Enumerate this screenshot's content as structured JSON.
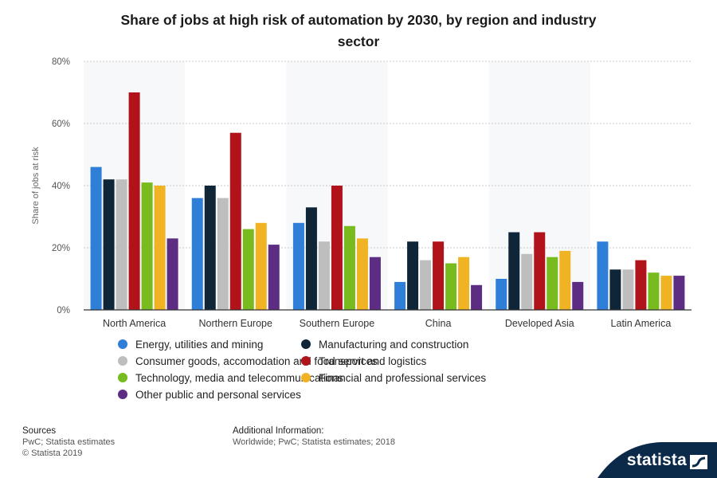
{
  "chart_data": {
    "type": "bar",
    "title": "Share of jobs at high risk of automation by 2030, by region and industry sector",
    "title_lines": [
      "Share of jobs at high risk of automation by 2030, by region and industry",
      "sector"
    ],
    "ylabel": "Share of jobs at risk",
    "ylim": [
      0,
      80
    ],
    "yticks": [
      0,
      20,
      40,
      60,
      80
    ],
    "ytick_labels": [
      "0%",
      "20%",
      "40%",
      "60%",
      "80%"
    ],
    "grid": true,
    "legend_position": "bottom",
    "categories": [
      "North America",
      "Northern Europe",
      "Southern Europe",
      "China",
      "Developed Asia",
      "Latin America"
    ],
    "series": [
      {
        "name": "Energy, utilities and mining",
        "color": "#2f7ed8",
        "values": [
          46,
          36,
          28,
          9,
          10,
          22
        ]
      },
      {
        "name": "Manufacturing and construction",
        "color": "#0f2538",
        "values": [
          42,
          40,
          33,
          22,
          25,
          13
        ]
      },
      {
        "name": "Consumer goods, accomodation and food services",
        "color": "#bebebe",
        "values": [
          42,
          36,
          22,
          16,
          18,
          13
        ]
      },
      {
        "name": "Transport and logistics",
        "color": "#b0141a",
        "values": [
          70,
          57,
          40,
          22,
          25,
          16
        ]
      },
      {
        "name": "Technology, media and telecommunications",
        "color": "#77bb1f",
        "values": [
          41,
          26,
          27,
          15,
          17,
          12
        ]
      },
      {
        "name": "Financial and professional services",
        "color": "#f0b324",
        "values": [
          40,
          28,
          23,
          17,
          19,
          11
        ]
      },
      {
        "name": "Other public and personal services",
        "color": "#5c2d82",
        "values": [
          23,
          21,
          17,
          8,
          9,
          11
        ]
      }
    ]
  },
  "footer": {
    "sources_heading": "Sources",
    "sources_line1": "PwC; Statista estimates",
    "sources_line2": "© Statista 2019",
    "additional_heading": "Additional Information:",
    "additional_line1": "Worldwide; PwC; Statista estimates; 2018"
  },
  "brand": {
    "name": "statista",
    "color": "#0b2a4a"
  }
}
